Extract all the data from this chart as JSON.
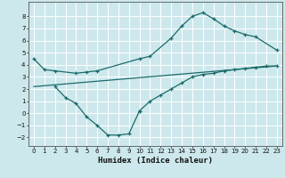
{
  "bg_color": "#cde8ec",
  "grid_color": "#ffffff",
  "line_color": "#1a6b6b",
  "xlabel": "Humidex (Indice chaleur)",
  "xlim": [
    -0.5,
    23.5
  ],
  "ylim": [
    -2.7,
    9.2
  ],
  "xticks": [
    0,
    1,
    2,
    3,
    4,
    5,
    6,
    7,
    8,
    9,
    10,
    11,
    12,
    13,
    14,
    15,
    16,
    17,
    18,
    19,
    20,
    21,
    22,
    23
  ],
  "yticks": [
    -2,
    -1,
    0,
    1,
    2,
    3,
    4,
    5,
    6,
    7,
    8
  ],
  "line1_x": [
    0,
    1,
    2,
    4,
    5,
    6,
    10,
    11,
    13,
    14,
    15,
    16,
    17,
    18,
    19,
    20,
    21,
    23
  ],
  "line1_y": [
    4.5,
    3.6,
    3.5,
    3.3,
    3.4,
    3.5,
    4.5,
    4.7,
    6.2,
    7.2,
    8.0,
    8.3,
    7.8,
    7.2,
    6.8,
    6.5,
    6.3,
    5.2
  ],
  "line2_x": [
    0,
    23
  ],
  "line2_y": [
    2.2,
    3.9
  ],
  "line3_x": [
    2,
    3,
    4,
    5,
    6,
    7,
    8,
    9,
    10
  ],
  "line3_y": [
    2.2,
    1.3,
    0.8,
    -0.3,
    -1.0,
    -1.8,
    -1.8,
    -1.7,
    0.2
  ],
  "line4_x": [
    10,
    11,
    12,
    13,
    14,
    15,
    16,
    17,
    18,
    19,
    20,
    21,
    22,
    23
  ],
  "line4_y": [
    0.2,
    1.0,
    1.5,
    2.0,
    2.5,
    3.0,
    3.2,
    3.3,
    3.5,
    3.6,
    3.7,
    3.8,
    3.9,
    3.9
  ]
}
